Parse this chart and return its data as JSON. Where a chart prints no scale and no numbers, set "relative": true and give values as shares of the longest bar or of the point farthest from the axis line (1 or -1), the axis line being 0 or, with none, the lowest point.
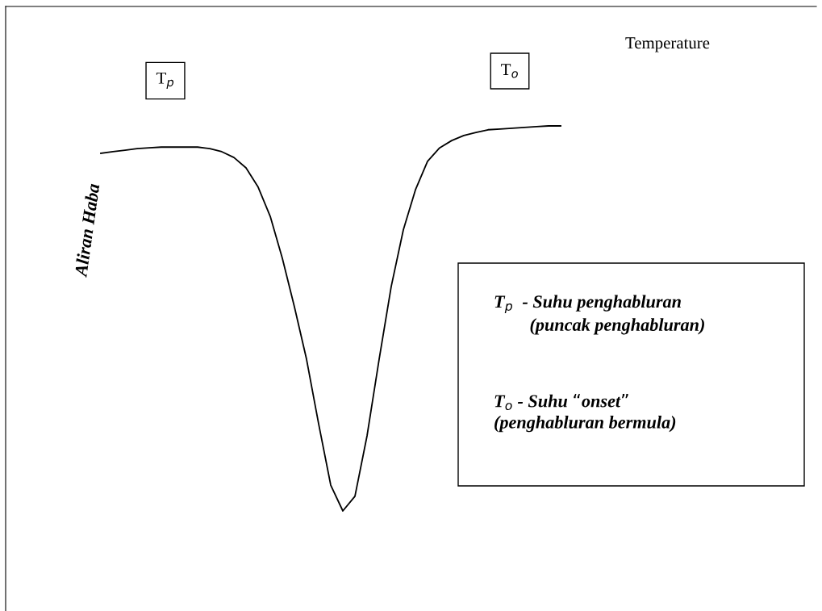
{
  "chart_data": {
    "type": "line",
    "relative": true,
    "ylabel": "Aliran Haba",
    "categories": [
      null,
      null,
      null,
      null,
      null,
      null,
      null,
      null,
      null,
      null,
      null,
      null,
      null,
      null,
      null,
      null,
      null,
      null,
      null,
      null,
      null,
      null,
      null,
      null,
      null,
      null,
      null,
      null,
      null,
      null,
      null,
      null,
      null,
      null,
      null,
      null,
      null,
      null,
      null
    ],
    "series": [
      {
        "color": "#000000",
        "values": [
          0.929,
          0.933,
          0.937,
          0.941,
          0.943,
          0.945,
          0.945,
          0.945,
          0.945,
          0.941,
          0.933,
          0.918,
          0.891,
          0.841,
          0.765,
          0.656,
          0.53,
          0.394,
          0.226,
          0.067,
          0,
          0.038,
          0.195,
          0.394,
          0.583,
          0.73,
          0.834,
          0.908,
          0.943,
          0.962,
          0.975,
          0.983,
          0.99,
          0.992,
          0.994,
          0.996,
          0.998,
          1,
          1
        ]
      }
    ],
    "annotations": [
      "T$_{p}$",
      "T$_{o}$",
      "Temperature",
      "T$_{p}$  - Suhu penghabluran\n        (puncak penghabluran)",
      "T$_{o}$ - Suhu “onset”\n(penghabluran bermula)"
    ],
    "legend": false,
    "marker": "none",
    "line_style": "solid"
  }
}
